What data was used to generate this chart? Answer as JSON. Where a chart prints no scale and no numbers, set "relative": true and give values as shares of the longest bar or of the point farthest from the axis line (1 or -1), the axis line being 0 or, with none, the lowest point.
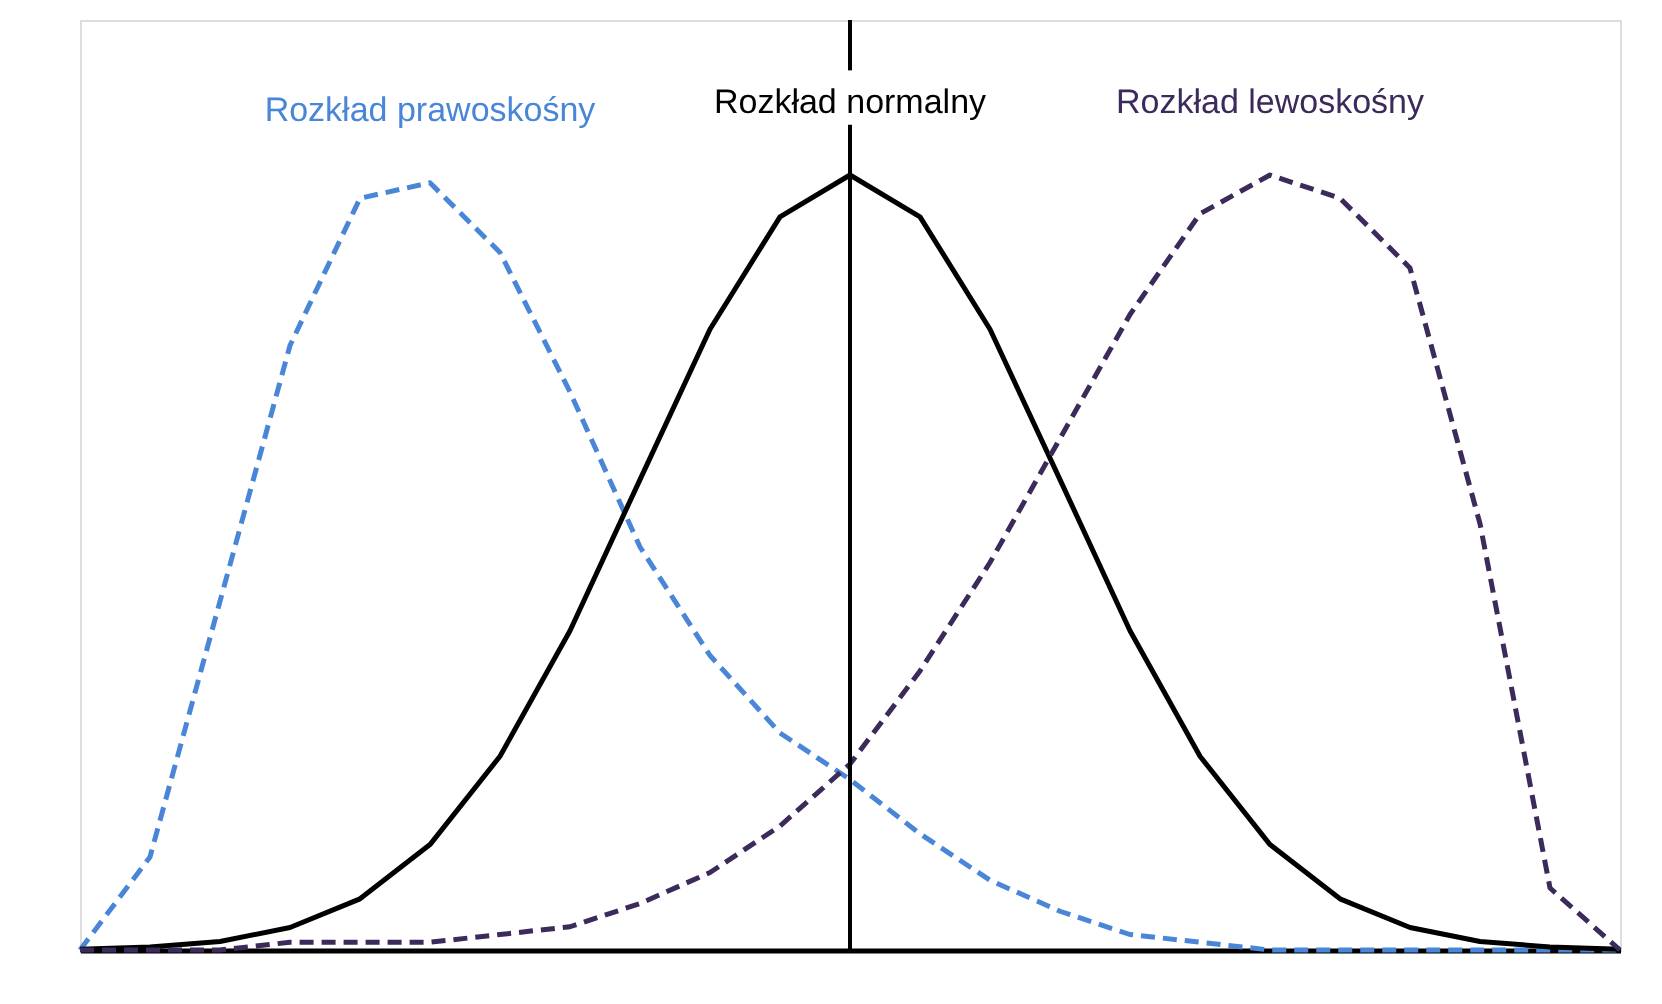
{
  "chart_data": {
    "type": "line",
    "relative": true,
    "categories": [
      null,
      null,
      null,
      null,
      null,
      null,
      null,
      null,
      null,
      null,
      null,
      null,
      null,
      null,
      null,
      null,
      null,
      null,
      null,
      null,
      null,
      null,
      null
    ],
    "grid": false,
    "marker": "none",
    "series": [
      {
        "name": "Rozkład prawoskośny",
        "color": "#4a86d8",
        "line_style": "dashed",
        "values": [
          0,
          0.12,
          0.45,
          0.78,
          0.97,
          0.99,
          0.9,
          0.72,
          0.52,
          0.38,
          0.28,
          0.22,
          0.15,
          0.09,
          0.05,
          0.02,
          0.01,
          0,
          0,
          0,
          0,
          0,
          0
        ]
      },
      {
        "name": "Rozkład normalny",
        "color": "#000000",
        "line_style": "solid",
        "values": [
          0.001,
          0.004,
          0.011,
          0.029,
          0.066,
          0.136,
          0.25,
          0.412,
          0.607,
          0.801,
          0.946,
          1,
          0.946,
          0.801,
          0.607,
          0.412,
          0.25,
          0.136,
          0.066,
          0.029,
          0.011,
          0.004,
          0.001
        ]
      },
      {
        "name": "Rozkład lewoskośny",
        "color": "#3b2a5a",
        "line_style": "dashed",
        "values": [
          0,
          0,
          0,
          0.01,
          0.01,
          0.01,
          0.02,
          0.03,
          0.06,
          0.1,
          0.16,
          0.24,
          0.36,
          0.5,
          0.66,
          0.82,
          0.95,
          1,
          0.97,
          0.88,
          0.55,
          0.08,
          0
        ]
      }
    ],
    "ref_lines": [
      {
        "axis": "x",
        "color": "#000000",
        "line_style": "solid"
      }
    ]
  }
}
